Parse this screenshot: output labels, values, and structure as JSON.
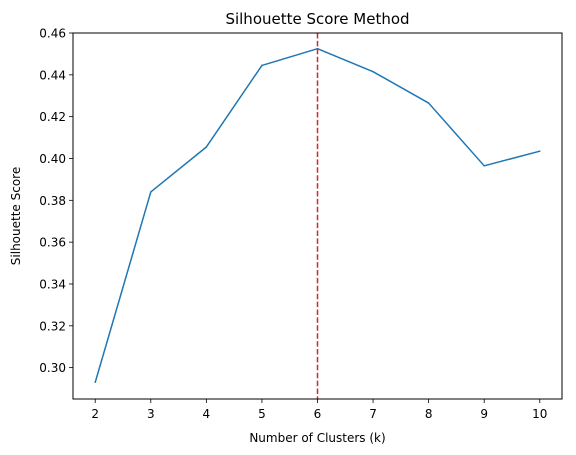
{
  "chart_data": {
    "type": "line",
    "title": "Silhouette Score Method",
    "xlabel": "Number of Clusters (k)",
    "ylabel": "Silhouette Score",
    "x": [
      2,
      3,
      4,
      5,
      6,
      7,
      8,
      9,
      10
    ],
    "series": [
      {
        "values": [
          0.293,
          0.384,
          0.4055,
          0.4445,
          0.4525,
          0.4415,
          0.4265,
          0.3965,
          0.4035
        ],
        "color": "#1f77b4"
      }
    ],
    "xlim": [
      1.6,
      10.4
    ],
    "ylim": [
      0.285,
      0.46
    ],
    "xticks": [
      "2",
      "3",
      "4",
      "5",
      "6",
      "7",
      "8",
      "9",
      "10"
    ],
    "yticks": [
      "0.30",
      "0.32",
      "0.34",
      "0.36",
      "0.38",
      "0.40",
      "0.42",
      "0.44",
      "0.46"
    ],
    "vline": {
      "x": 6,
      "color": "#d62728",
      "style": "dashed"
    },
    "grid": false,
    "legend": "none"
  }
}
